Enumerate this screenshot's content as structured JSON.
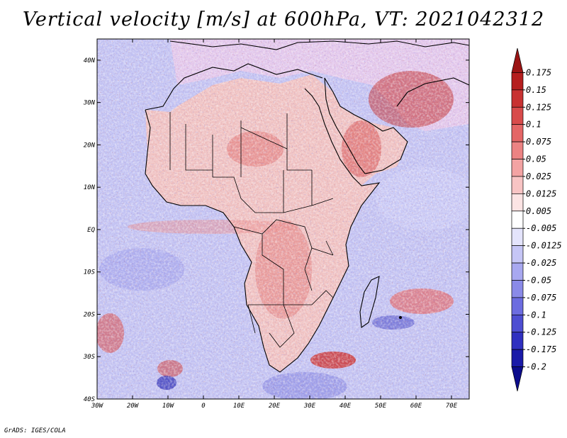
{
  "title": "Vertical velocity [m/s] at 600hPa, VT: 2021042312",
  "credit": "GrADS: IGES/COLA",
  "map": {
    "lat_labels": [
      "40N",
      "30N",
      "20N",
      "10N",
      "EQ",
      "10S",
      "20S",
      "30S",
      "40S"
    ],
    "lat_values": [
      40,
      30,
      20,
      10,
      0,
      -10,
      -20,
      -30,
      -40
    ],
    "lon_labels": [
      "30W",
      "20W",
      "10W",
      "0",
      "10E",
      "20E",
      "30E",
      "40E",
      "50E",
      "60E",
      "70E"
    ],
    "lon_values": [
      -30,
      -20,
      -10,
      0,
      10,
      20,
      30,
      40,
      50,
      60,
      70
    ],
    "lon_range": [
      -30,
      75
    ],
    "lat_range": [
      -40,
      45
    ]
  },
  "colorbar": {
    "labels": [
      "0.175",
      "0.15",
      "0.125",
      "0.1",
      "0.075",
      "0.05",
      "0.025",
      "0.0125",
      "0.005",
      "-0.005",
      "-0.0125",
      "-0.025",
      "-0.05",
      "-0.075",
      "-0.1",
      "-0.125",
      "-0.175",
      "-0.2"
    ],
    "colors": [
      "#9b1414",
      "#b51e1e",
      "#c83232",
      "#d84b4b",
      "#e46666",
      "#ec8383",
      "#f3a3a3",
      "#f8c4c4",
      "#fce4e4",
      "#ffffff",
      "#e4e4fc",
      "#c6c6f6",
      "#a8a8f0",
      "#8a8ae8",
      "#6c6ce0",
      "#4e4ed2",
      "#3030c0",
      "#1a1aa8",
      "#0c0c8c"
    ]
  },
  "palette": {
    "ocean": "#b9b9f2",
    "land": "#f2b3b3",
    "border": "#000000"
  }
}
